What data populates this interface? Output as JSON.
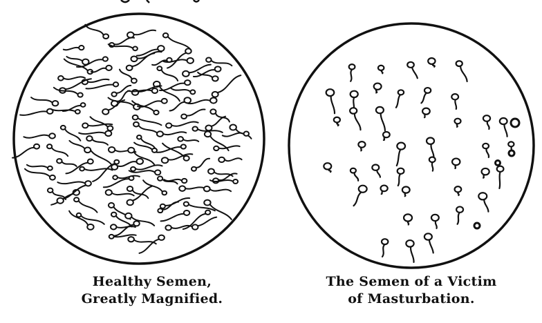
{
  "figure": {
    "left_panel": {
      "label": "healthy-semen-sample",
      "caption_line1": "Healthy Semen,",
      "caption_line2": "Greatly Magnified."
    },
    "right_panel": {
      "label": "masturbation-victim-semen-sample",
      "caption_line1": "The Semen of a Victim",
      "caption_line2": "of Masturbation."
    }
  },
  "colors": {
    "ink": "#111111",
    "paper": "#ffffff"
  }
}
